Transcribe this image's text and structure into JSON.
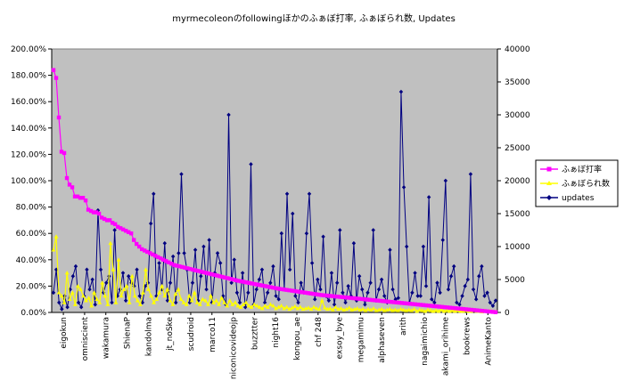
{
  "chart_data": {
    "type": "line",
    "title": "myrmecoleonのfollowingほかのふぁぼ打率, ふぁぼられ数, Updates",
    "y_left": {
      "min": 0,
      "max": 2.0,
      "step": 0.2,
      "tick_labels": [
        "0.00%",
        "20.00%",
        "40.00%",
        "60.00%",
        "80.00%",
        "100.00%",
        "120.00%",
        "140.00%",
        "160.00%",
        "180.00%",
        "200.00%"
      ]
    },
    "y_right": {
      "min": 0,
      "max": 40000,
      "step": 5000,
      "tick_labels": [
        "0",
        "5000",
        "10000",
        "15000",
        "20000",
        "25000",
        "30000",
        "35000",
        "40000"
      ]
    },
    "grid": false,
    "plot_background": "#c0c0c0",
    "x_labels": [
      "eigokun",
      "omniscient",
      "wakamura",
      "ShienaP",
      "kandolma",
      "jt_noSke",
      "scudroid",
      "marco11",
      "niconicovideojp",
      "buzztter",
      "night16",
      "kongou_ae",
      "chf 248",
      "exsoy_bye",
      "megamimu",
      "alphaseven",
      "arith",
      "nagaimichio",
      "akami_orihime",
      "bookrews",
      "AnimeKanto"
    ],
    "legend_position": "right",
    "series": [
      {
        "name": "ふぁぼ打率",
        "axis": "left",
        "color": "#ff00ff",
        "marker": "square",
        "values": [
          1.84,
          1.78,
          1.48,
          1.22,
          1.21,
          1.02,
          0.97,
          0.95,
          0.88,
          0.88,
          0.87,
          0.87,
          0.85,
          0.78,
          0.77,
          0.76,
          0.76,
          0.75,
          0.72,
          0.71,
          0.7,
          0.7,
          0.68,
          0.67,
          0.65,
          0.64,
          0.63,
          0.62,
          0.61,
          0.6,
          0.55,
          0.52,
          0.5,
          0.48,
          0.47,
          0.46,
          0.45,
          0.44,
          0.43,
          0.42,
          0.41,
          0.4,
          0.39,
          0.38,
          0.37,
          0.36,
          0.355,
          0.35,
          0.345,
          0.34,
          0.335,
          0.33,
          0.325,
          0.32,
          0.315,
          0.31,
          0.305,
          0.3,
          0.295,
          0.29,
          0.285,
          0.28,
          0.275,
          0.27,
          0.265,
          0.26,
          0.255,
          0.25,
          0.245,
          0.24,
          0.236,
          0.232,
          0.228,
          0.224,
          0.22,
          0.216,
          0.212,
          0.208,
          0.204,
          0.2,
          0.196,
          0.192,
          0.188,
          0.184,
          0.18,
          0.177,
          0.174,
          0.171,
          0.168,
          0.165,
          0.162,
          0.159,
          0.156,
          0.153,
          0.15,
          0.147,
          0.144,
          0.141,
          0.138,
          0.135,
          0.132,
          0.13,
          0.128,
          0.126,
          0.124,
          0.122,
          0.12,
          0.118,
          0.116,
          0.114,
          0.112,
          0.11,
          0.108,
          0.106,
          0.104,
          0.102,
          0.1,
          0.098,
          0.096,
          0.094,
          0.092,
          0.09,
          0.088,
          0.086,
          0.084,
          0.082,
          0.08,
          0.078,
          0.076,
          0.074,
          0.072,
          0.07,
          0.068,
          0.066,
          0.064,
          0.062,
          0.06,
          0.058,
          0.056,
          0.054,
          0.052,
          0.05,
          0.048,
          0.046,
          0.044,
          0.042,
          0.04,
          0.038,
          0.036,
          0.034,
          0.032,
          0.03,
          0.028,
          0.026,
          0.024,
          0.022,
          0.02,
          0.018,
          0.016,
          0.014,
          0.012,
          0.01,
          0.008,
          0.006,
          0.004,
          0.002
        ]
      },
      {
        "name": "ふぁぼられ数",
        "axis": "right",
        "color": "#ffff00",
        "marker": "triangle",
        "values": [
          9500,
          11500,
          3000,
          2500,
          1500,
          6000,
          2000,
          3000,
          1200,
          4000,
          3500,
          2500,
          1800,
          2200,
          1000,
          3000,
          2000,
          1500,
          4500,
          2500,
          1200,
          10500,
          6500,
          1500,
          8000,
          2500,
          3500,
          4000,
          1500,
          5500,
          2500,
          1800,
          1200,
          3000,
          6500,
          3500,
          2500,
          1500,
          2000,
          3000,
          4000,
          2500,
          3500,
          1800,
          1200,
          2800,
          3500,
          2000,
          1500,
          1200,
          2500,
          1800,
          3000,
          1500,
          1200,
          2000,
          1800,
          1200,
          2500,
          1500,
          1800,
          1200,
          2200,
          1500,
          1000,
          1800,
          1200,
          1500,
          1000,
          800,
          1200,
          1500,
          1000,
          800,
          1200,
          1000,
          800,
          600,
          1000,
          800,
          1200,
          1000,
          600,
          800,
          1000,
          600,
          800,
          500,
          700,
          900,
          600,
          800,
          500,
          600,
          700,
          500,
          800,
          600,
          500,
          1800,
          700,
          500,
          600,
          400,
          800,
          500,
          600,
          400,
          500,
          700,
          400,
          500,
          600,
          400,
          500,
          300,
          500,
          400,
          600,
          300,
          400,
          500,
          300,
          400,
          500,
          300,
          400,
          300,
          500,
          400,
          300,
          400,
          300,
          500,
          200,
          400,
          300,
          200,
          400,
          300,
          200,
          300,
          200,
          400,
          200,
          300,
          200,
          300,
          200,
          300,
          200,
          200,
          300,
          200,
          200,
          300,
          200,
          200,
          100,
          200,
          100,
          200,
          100,
          100
        ]
      },
      {
        "name": "updates",
        "axis": "right",
        "color": "#000080",
        "marker": "diamond",
        "values": [
          3000,
          6500,
          1500,
          500,
          2500,
          800,
          3500,
          5500,
          7000,
          1500,
          800,
          2500,
          6500,
          3500,
          5000,
          1200,
          15500,
          6500,
          3000,
          4500,
          5500,
          1500,
          12500,
          2500,
          3500,
          6000,
          1800,
          5500,
          4500,
          4000,
          6500,
          2500,
          1500,
          4000,
          4500,
          13500,
          18000,
          2500,
          7500,
          3500,
          10500,
          1800,
          4500,
          8500,
          1500,
          9000,
          21000,
          9000,
          6500,
          1500,
          4500,
          9500,
          1800,
          5500,
          10000,
          3500,
          11000,
          1500,
          6000,
          9000,
          7500,
          2500,
          1200,
          30000,
          4500,
          8000,
          3000,
          1500,
          6000,
          800,
          3000,
          22500,
          1200,
          3500,
          5000,
          6500,
          1500,
          3000,
          4500,
          7000,
          2500,
          2000,
          12000,
          3500,
          18000,
          6500,
          15000,
          2500,
          1500,
          4500,
          3000,
          12000,
          18000,
          7500,
          2000,
          5000,
          3500,
          11500,
          2500,
          1800,
          6000,
          1200,
          4500,
          12500,
          3000,
          1500,
          4000,
          2500,
          10500,
          1800,
          5500,
          3500,
          1200,
          3000,
          4500,
          12500,
          1800,
          3500,
          5000,
          2500,
          1500,
          9500,
          3500,
          2000,
          2200,
          33500,
          19000,
          10000,
          1500,
          3000,
          6000,
          2500,
          2500,
          10000,
          4000,
          17500,
          2000,
          1500,
          4500,
          3000,
          11000,
          20000,
          3500,
          5500,
          7000,
          1500,
          1200,
          2500,
          4000,
          5000,
          21000,
          3500,
          2000,
          5500,
          7000,
          2500,
          3000,
          1500,
          1000,
          1800
        ]
      }
    ]
  }
}
